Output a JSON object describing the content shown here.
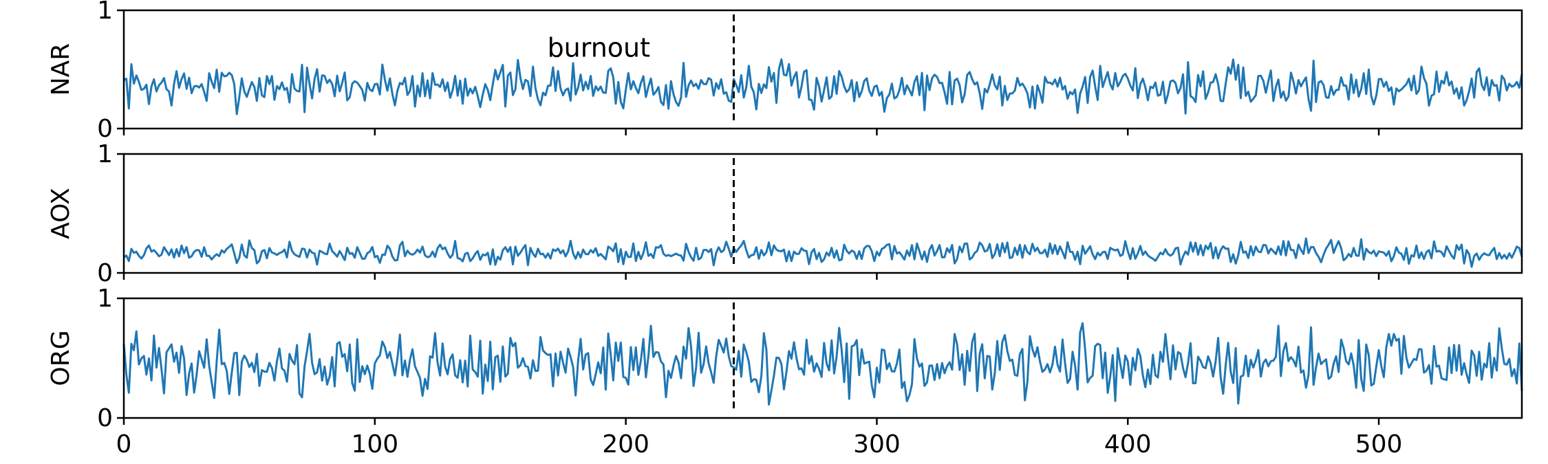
{
  "chart_data": {
    "type": "line",
    "xlim": [
      0,
      557
    ],
    "x_ticks": [
      0,
      100,
      200,
      300,
      400,
      500
    ],
    "event_x": 243,
    "colors": {
      "line": "#1f77b4",
      "axis": "#000000",
      "event_line": "#000000"
    },
    "panels": [
      {
        "ylabel": "NAR",
        "ylim": [
          0,
          1
        ],
        "y_ticks": [
          0,
          1
        ],
        "series_name": "NAR",
        "annotation": {
          "text": "burnout",
          "x": 181,
          "y": 0.69
        },
        "seed": 7,
        "mean": 0.36,
        "spread": 0.2,
        "min": 0.02,
        "max": 0.74
      },
      {
        "ylabel": "AOX",
        "ylim": [
          0,
          1
        ],
        "y_ticks": [
          0,
          1
        ],
        "series_name": "AOX",
        "seed": 19,
        "mean": 0.17,
        "spread": 0.1,
        "min": 0.0,
        "max": 0.41
      },
      {
        "ylabel": "ORG",
        "ylim": [
          0,
          1
        ],
        "y_ticks": [
          0,
          1
        ],
        "series_name": "ORG",
        "seed": 41,
        "mean": 0.45,
        "spread": 0.28,
        "min": 0.0,
        "max": 0.93
      }
    ]
  }
}
